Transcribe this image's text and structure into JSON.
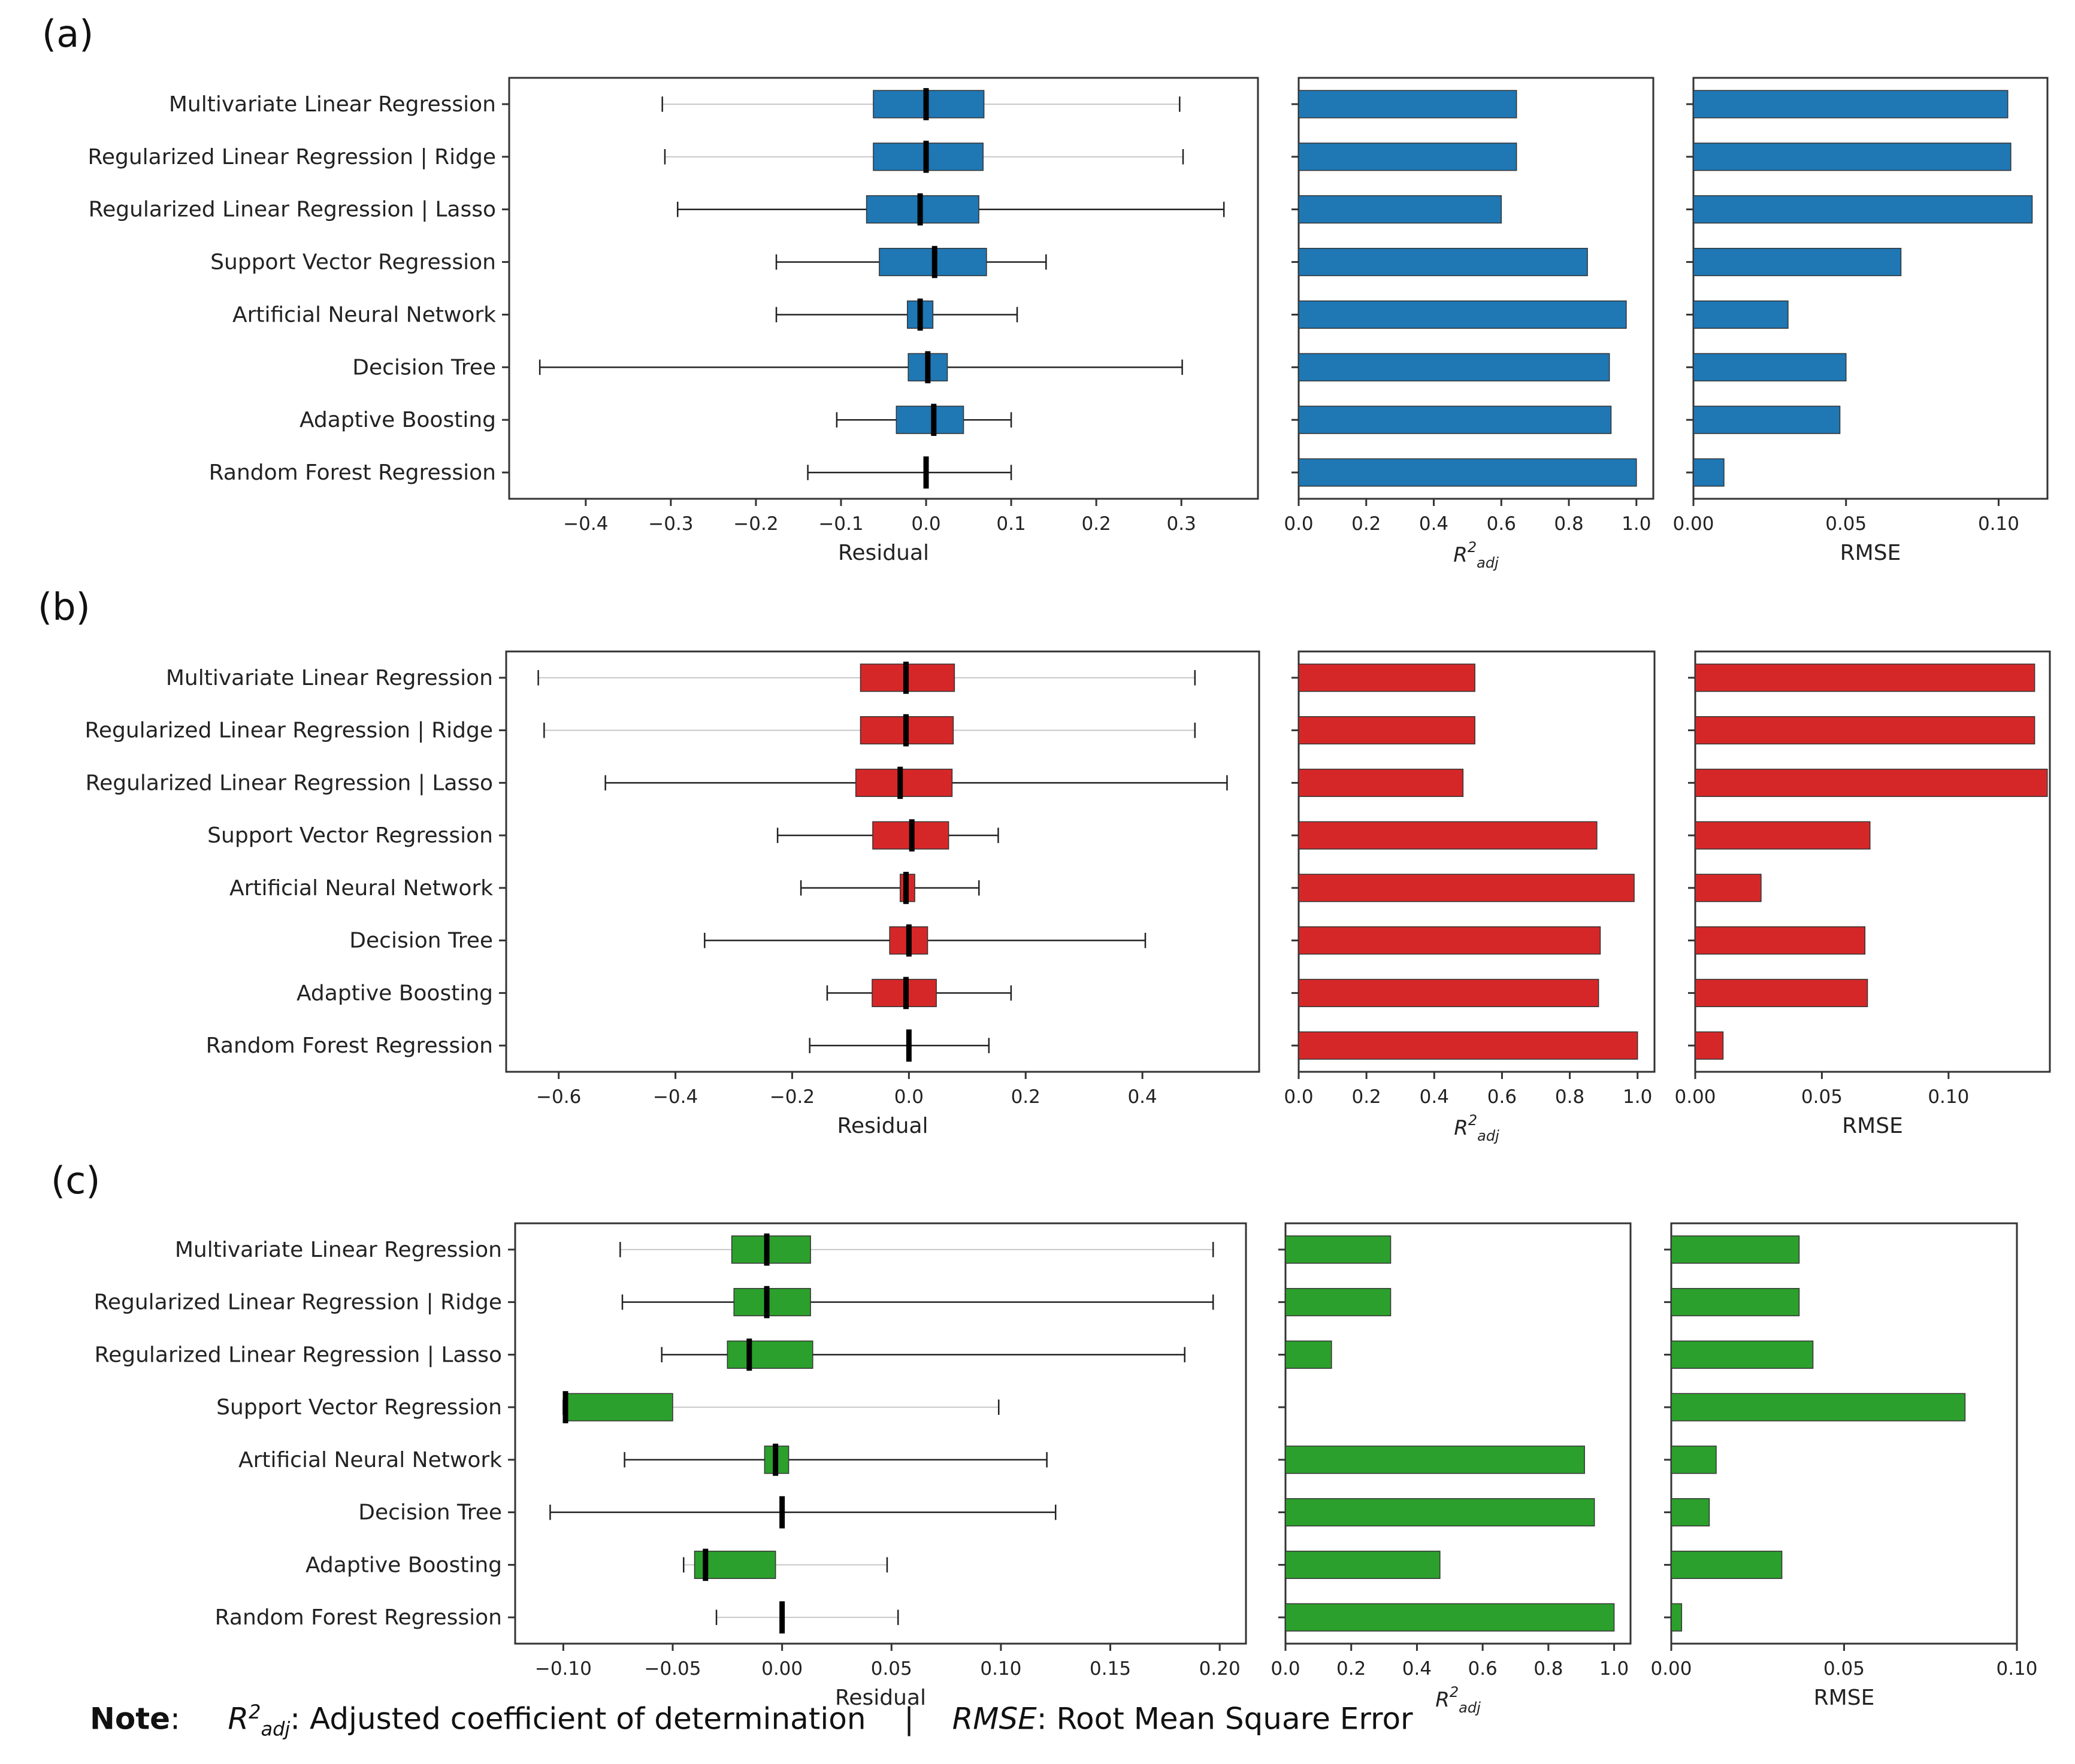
{
  "models": [
    "Multivariate Linear Regression",
    "Regularized Linear Regression | Ridge",
    "Regularized Linear Regression | Lasso",
    "Support Vector Regression",
    "Artificial Neural Network",
    "Decision Tree",
    "Adaptive Boosting",
    "Random Forest Regression"
  ],
  "note": {
    "label": "Note",
    "sep": ":",
    "r2_sym": "R",
    "r2_sup": "2",
    "r2_sub": "adj",
    "r2_text": ": Adjusted coefficient of determination",
    "divider": "|",
    "rmse_sym": "RMSE",
    "rmse_text": ": Root Mean Square Error"
  },
  "chart_data": [
    {
      "panel": "(a)",
      "color": "#1f77b4",
      "residual": {
        "type": "boxplot",
        "xlabel": "Residual",
        "xlim": [
          -0.49,
          0.39
        ],
        "ticks": [
          -0.4,
          -0.3,
          -0.2,
          -0.1,
          0.0,
          0.1,
          0.2,
          0.3
        ],
        "tick_labels": [
          "−0.4",
          "−0.3",
          "−0.2",
          "−0.1",
          "0.0",
          "0.1",
          "0.2",
          "0.3"
        ],
        "boxes": [
          {
            "whislo": -0.31,
            "q1": -0.062,
            "med": 0.0,
            "q3": 0.068,
            "whishi": 0.298,
            "faint": true
          },
          {
            "whislo": -0.307,
            "q1": -0.062,
            "med": 0.0,
            "q3": 0.067,
            "whishi": 0.302,
            "faint": true
          },
          {
            "whislo": -0.292,
            "q1": -0.07,
            "med": -0.007,
            "q3": 0.062,
            "whishi": 0.35,
            "faint": false
          },
          {
            "whislo": -0.176,
            "q1": -0.055,
            "med": 0.01,
            "q3": 0.071,
            "whishi": 0.141,
            "faint": false
          },
          {
            "whislo": -0.176,
            "q1": -0.022,
            "med": -0.007,
            "q3": 0.008,
            "whishi": 0.107,
            "faint": false
          },
          {
            "whislo": -0.454,
            "q1": -0.021,
            "med": 0.002,
            "q3": 0.025,
            "whishi": 0.301,
            "faint": false
          },
          {
            "whislo": -0.105,
            "q1": -0.035,
            "med": 0.009,
            "q3": 0.044,
            "whishi": 0.1,
            "faint": false
          },
          {
            "whislo": -0.139,
            "q1": 0.0,
            "med": 0.0,
            "q3": 0.0,
            "whishi": 0.1,
            "faint": false
          }
        ]
      },
      "r2": {
        "type": "bar",
        "xlabel_sym": "R",
        "xlabel_sup": "2",
        "xlabel_sub": "adj",
        "xlim": [
          0,
          1.05
        ],
        "ticks": [
          0.0,
          0.2,
          0.4,
          0.6,
          0.8,
          1.0
        ],
        "tick_labels": [
          "0.0",
          "0.2",
          "0.4",
          "0.6",
          "0.8",
          "1.0"
        ],
        "values": [
          0.645,
          0.645,
          0.6,
          0.855,
          0.97,
          0.92,
          0.925,
          1.0
        ]
      },
      "rmse": {
        "type": "bar",
        "xlabel": "RMSE",
        "xlim": [
          0,
          0.116
        ],
        "ticks": [
          0.0,
          0.05,
          0.1
        ],
        "tick_labels": [
          "0.00",
          "0.05",
          "0.10"
        ],
        "values": [
          0.103,
          0.104,
          0.111,
          0.068,
          0.031,
          0.05,
          0.048,
          0.01
        ]
      }
    },
    {
      "panel": "(b)",
      "color": "#d62728",
      "residual": {
        "type": "boxplot",
        "xlabel": "Residual",
        "xlim": [
          -0.69,
          0.6
        ],
        "ticks": [
          -0.6,
          -0.4,
          -0.2,
          0.0,
          0.2,
          0.4
        ],
        "tick_labels": [
          "−0.6",
          "−0.4",
          "−0.2",
          "0.0",
          "0.2",
          "0.4"
        ],
        "boxes": [
          {
            "whislo": -0.635,
            "q1": -0.083,
            "med": -0.005,
            "q3": 0.078,
            "whishi": 0.49,
            "faint": true
          },
          {
            "whislo": -0.625,
            "q1": -0.083,
            "med": -0.005,
            "q3": 0.076,
            "whishi": 0.49,
            "faint": true
          },
          {
            "whislo": -0.52,
            "q1": -0.091,
            "med": -0.015,
            "q3": 0.074,
            "whishi": 0.545,
            "faint": false
          },
          {
            "whislo": -0.225,
            "q1": -0.062,
            "med": 0.005,
            "q3": 0.068,
            "whishi": 0.153,
            "faint": false
          },
          {
            "whislo": -0.185,
            "q1": -0.015,
            "med": -0.005,
            "q3": 0.01,
            "whishi": 0.12,
            "faint": false
          },
          {
            "whislo": -0.35,
            "q1": -0.033,
            "med": 0.0,
            "q3": 0.032,
            "whishi": 0.405,
            "faint": false
          },
          {
            "whislo": -0.14,
            "q1": -0.063,
            "med": -0.005,
            "q3": 0.047,
            "whishi": 0.175,
            "faint": false
          },
          {
            "whislo": -0.17,
            "q1": 0.0,
            "med": 0.0,
            "q3": 0.0,
            "whishi": 0.137,
            "faint": false
          }
        ]
      },
      "r2": {
        "type": "bar",
        "xlabel_sym": "R",
        "xlabel_sup": "2",
        "xlabel_sub": "adj",
        "xlim": [
          0,
          1.05
        ],
        "ticks": [
          0.0,
          0.2,
          0.4,
          0.6,
          0.8,
          1.0
        ],
        "tick_labels": [
          "0.0",
          "0.2",
          "0.4",
          "0.6",
          "0.8",
          "1.0"
        ],
        "values": [
          0.52,
          0.52,
          0.485,
          0.88,
          0.99,
          0.89,
          0.885,
          1.0
        ]
      },
      "rmse": {
        "type": "bar",
        "xlabel": "RMSE",
        "xlim": [
          0,
          0.14
        ],
        "ticks": [
          0.0,
          0.05,
          0.1
        ],
        "tick_labels": [
          "0.00",
          "0.05",
          "0.10"
        ],
        "values": [
          0.134,
          0.134,
          0.139,
          0.069,
          0.026,
          0.067,
          0.068,
          0.011
        ]
      }
    },
    {
      "panel": "(c)",
      "color": "#2ca02c",
      "residual": {
        "type": "boxplot",
        "xlabel": "Residual",
        "xlim": [
          -0.122,
          0.212
        ],
        "ticks": [
          -0.1,
          -0.05,
          0.0,
          0.05,
          0.1,
          0.15,
          0.2
        ],
        "tick_labels": [
          "−0.10",
          "−0.05",
          "0.00",
          "0.05",
          "0.10",
          "0.15",
          "0.20"
        ],
        "boxes": [
          {
            "whislo": -0.074,
            "q1": -0.023,
            "med": -0.007,
            "q3": 0.013,
            "whishi": 0.197,
            "faint": true
          },
          {
            "whislo": -0.073,
            "q1": -0.022,
            "med": -0.007,
            "q3": 0.013,
            "whishi": 0.197,
            "faint": false
          },
          {
            "whislo": -0.055,
            "q1": -0.025,
            "med": -0.015,
            "q3": 0.014,
            "whishi": 0.184,
            "faint": false
          },
          {
            "whislo": -0.1,
            "q1": -0.1,
            "med": -0.099,
            "q3": -0.05,
            "whishi": 0.099,
            "faint": true
          },
          {
            "whislo": -0.072,
            "q1": -0.008,
            "med": -0.003,
            "q3": 0.003,
            "whishi": 0.121,
            "faint": false
          },
          {
            "whislo": -0.106,
            "q1": 0.0,
            "med": 0.0,
            "q3": 0.0,
            "whishi": 0.125,
            "faint": false
          },
          {
            "whislo": -0.045,
            "q1": -0.04,
            "med": -0.035,
            "q3": -0.003,
            "whishi": 0.048,
            "faint": true
          },
          {
            "whislo": -0.03,
            "q1": 0.0,
            "med": 0.0,
            "q3": 0.0,
            "whishi": 0.053,
            "faint": true
          }
        ]
      },
      "r2": {
        "type": "bar",
        "xlabel_sym": "R",
        "xlabel_sup": "2",
        "xlabel_sub": "adj",
        "xlim": [
          0,
          1.05
        ],
        "ticks": [
          0.0,
          0.2,
          0.4,
          0.6,
          0.8,
          1.0
        ],
        "tick_labels": [
          "0.0",
          "0.2",
          "0.4",
          "0.6",
          "0.8",
          "1.0"
        ],
        "values": [
          0.32,
          0.32,
          0.14,
          0.0,
          0.91,
          0.94,
          0.47,
          1.0
        ]
      },
      "rmse": {
        "type": "bar",
        "xlabel": "RMSE",
        "xlim": [
          0,
          0.1
        ],
        "ticks": [
          0.0,
          0.05,
          0.1
        ],
        "tick_labels": [
          "0.00",
          "0.05",
          "0.10"
        ],
        "values": [
          0.037,
          0.037,
          0.041,
          0.085,
          0.013,
          0.011,
          0.032,
          0.003
        ]
      }
    }
  ]
}
